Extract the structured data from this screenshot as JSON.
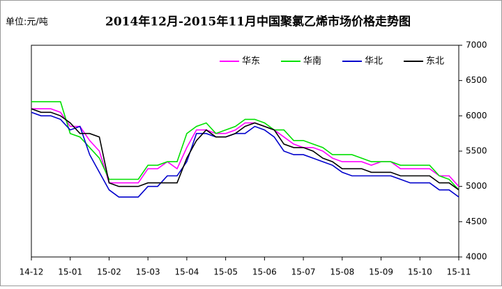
{
  "chart_data": {
    "type": "line",
    "title": "2014年12月-2015年11月中国聚氯乙烯市场价格走势图",
    "unit_label": "单位:元/吨",
    "categories": [
      "14-12",
      null,
      null,
      null,
      "15-01",
      null,
      null,
      null,
      "15-02",
      null,
      null,
      null,
      "15-03",
      null,
      null,
      null,
      "15-04",
      null,
      null,
      null,
      "15-05",
      null,
      null,
      null,
      "15-06",
      null,
      null,
      null,
      "15-07",
      null,
      null,
      null,
      "15-08",
      null,
      null,
      null,
      "15-09",
      null,
      null,
      null,
      "15-10",
      null,
      null,
      null,
      "15-11"
    ],
    "series": [
      {
        "name": "华东",
        "color": "#ff00ff",
        "values": [
          6100,
          6100,
          6100,
          6050,
          5850,
          5850,
          5650,
          5500,
          5050,
          5050,
          5050,
          5050,
          5250,
          5250,
          5350,
          5250,
          5550,
          5800,
          5800,
          5750,
          5750,
          5800,
          5900,
          5900,
          5850,
          5800,
          5700,
          5600,
          5550,
          5550,
          5500,
          5400,
          5350,
          5350,
          5350,
          5300,
          5350,
          5350,
          5250,
          5250,
          5250,
          5250,
          5150,
          5150,
          5000
        ]
      },
      {
        "name": "华南",
        "color": "#00e000",
        "values": [
          6200,
          6200,
          6200,
          6200,
          5750,
          5700,
          5550,
          5400,
          5100,
          5100,
          5100,
          5100,
          5300,
          5300,
          5350,
          5350,
          5750,
          5850,
          5900,
          5750,
          5800,
          5850,
          5950,
          5950,
          5900,
          5800,
          5800,
          5650,
          5650,
          5600,
          5550,
          5450,
          5450,
          5450,
          5400,
          5350,
          5350,
          5350,
          5300,
          5300,
          5300,
          5300,
          5150,
          5100,
          4950
        ]
      },
      {
        "name": "华北",
        "color": "#0000cc",
        "values": [
          6050,
          6000,
          6000,
          5950,
          5800,
          5850,
          5450,
          5200,
          4950,
          4850,
          4850,
          4850,
          5000,
          5000,
          5150,
          5150,
          5350,
          5750,
          5750,
          5700,
          5700,
          5750,
          5750,
          5850,
          5800,
          5700,
          5500,
          5450,
          5450,
          5400,
          5350,
          5300,
          5200,
          5150,
          5150,
          5150,
          5150,
          5150,
          5100,
          5050,
          5050,
          5050,
          4950,
          4950,
          4850
        ]
      },
      {
        "name": "东北",
        "color": "#000000",
        "values": [
          6100,
          6050,
          6050,
          6000,
          5900,
          5750,
          5750,
          5700,
          5050,
          5000,
          5000,
          5000,
          5050,
          5050,
          5050,
          5050,
          5400,
          5650,
          5800,
          5700,
          5700,
          5750,
          5850,
          5900,
          5850,
          5800,
          5600,
          5550,
          5550,
          5500,
          5400,
          5350,
          5250,
          5250,
          5250,
          5200,
          5200,
          5200,
          5150,
          5150,
          5150,
          5150,
          5050,
          5050,
          4950
        ]
      }
    ],
    "ylim": [
      4000,
      7000
    ],
    "yticks": [
      4000,
      4500,
      5000,
      5500,
      6000,
      6500,
      7000
    ],
    "y_axis_side": "right",
    "legend": "top",
    "grid": false
  }
}
